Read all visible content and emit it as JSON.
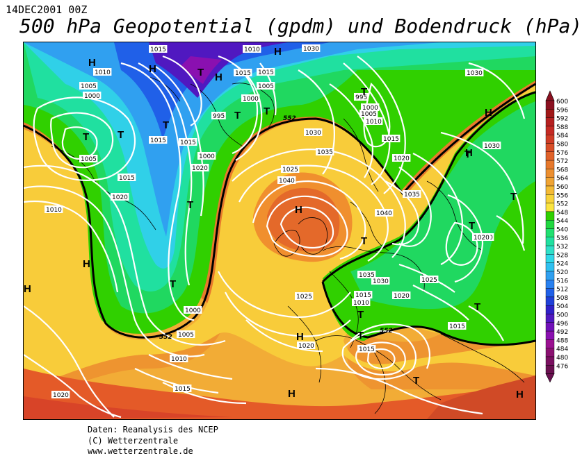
{
  "header": {
    "datetime": "14DEC2001 00Z",
    "title": "500 hPa Geopotential (gpdm) und Bodendruck (hPa)"
  },
  "footer": {
    "line1": "Daten: Reanalysis des NCEP",
    "line2": "(C) Wetterzentrale",
    "line3": "www.wetterzentrale.de"
  },
  "legend": {
    "values": [
      "600",
      "596",
      "592",
      "588",
      "584",
      "580",
      "576",
      "572",
      "568",
      "564",
      "560",
      "556",
      "552",
      "548",
      "544",
      "540",
      "536",
      "532",
      "528",
      "524",
      "520",
      "516",
      "512",
      "508",
      "504",
      "500",
      "496",
      "492",
      "488",
      "484",
      "480",
      "476"
    ],
    "colors": [
      "#8a1020",
      "#a01818",
      "#b52020",
      "#c42a24",
      "#cf3c26",
      "#d84e28",
      "#e0622a",
      "#e6782c",
      "#ec8f30",
      "#f0a434",
      "#f4ba36",
      "#f8d23a",
      "#fbe440",
      "#30d000",
      "#20d840",
      "#20e070",
      "#20e0a0",
      "#30e0c8",
      "#30d8e8",
      "#30c0f0",
      "#30a0f0",
      "#2880f0",
      "#2060e8",
      "#2040d8",
      "#3020c8",
      "#5018c0",
      "#7010b8",
      "#8a10b0",
      "#9a1090",
      "#8a1070",
      "#7a1060",
      "#6a1050"
    ]
  },
  "map": {
    "pressure_labels": [
      "1010",
      "1005",
      "1000",
      "1005",
      "1015",
      "1015",
      "1010",
      "1015",
      "1015",
      "1005",
      "1000",
      "995",
      "1015",
      "1010",
      "1015",
      "1000",
      "1020",
      "1025",
      "1030",
      "1035",
      "1040",
      "995",
      "1000",
      "1005",
      "1010",
      "1015",
      "1020",
      "1030",
      "1030",
      "1035",
      "1040",
      "1020",
      "1035",
      "1030",
      "1025",
      "1020",
      "1015",
      "1010",
      "1025",
      "1020",
      "1015",
      "1015",
      "1020",
      "1000",
      "1005",
      "1010",
      "1015",
      "1020",
      "1010",
      "1020",
      "1030"
    ],
    "centers": [
      {
        "type": "H"
      },
      {
        "type": "H"
      },
      {
        "type": "T"
      },
      {
        "type": "H"
      },
      {
        "type": "T"
      },
      {
        "type": "T"
      },
      {
        "type": "T"
      },
      {
        "type": "T"
      },
      {
        "type": "T"
      },
      {
        "type": "H"
      },
      {
        "type": "H"
      },
      {
        "type": "T"
      },
      {
        "type": "T"
      },
      {
        "type": "H"
      },
      {
        "type": "T"
      },
      {
        "type": "T"
      },
      {
        "type": "T"
      },
      {
        "type": "H"
      },
      {
        "type": "T"
      },
      {
        "type": "H"
      },
      {
        "type": "T"
      },
      {
        "type": "T"
      },
      {
        "type": "H"
      },
      {
        "type": "T"
      },
      {
        "type": "H"
      },
      {
        "type": "H"
      },
      {
        "type": "T"
      },
      {
        "type": "H"
      },
      {
        "type": "T"
      }
    ],
    "contour_552_labels": [
      "552",
      "552",
      "552"
    ]
  }
}
